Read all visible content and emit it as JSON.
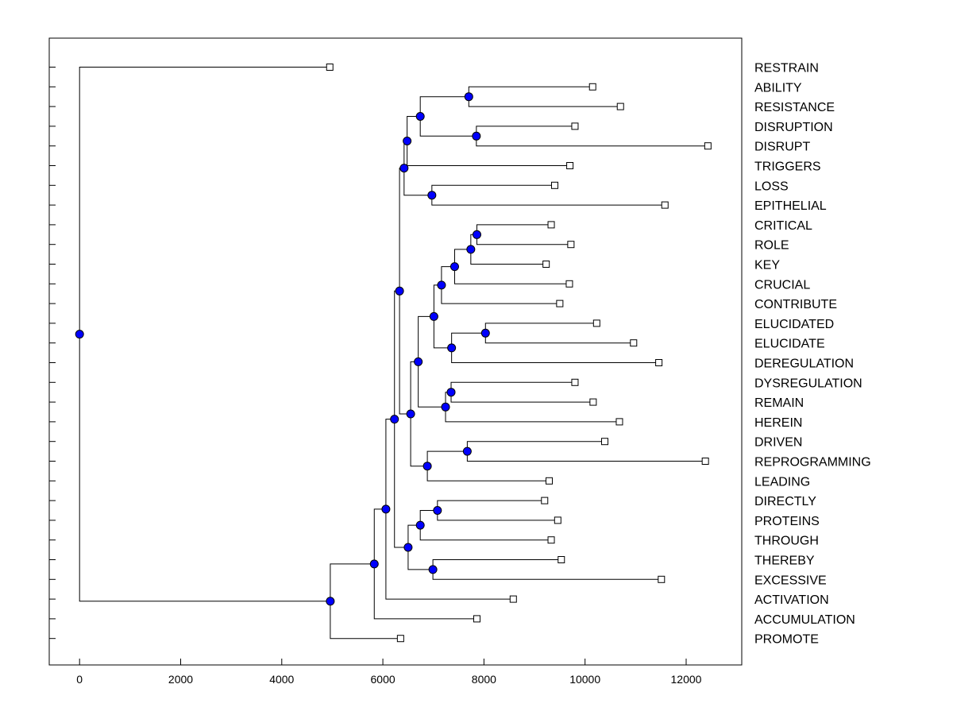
{
  "chart_data": {
    "type": "dendrogram",
    "title": "",
    "xlabel": "",
    "ylabel": "",
    "xlim": [
      -600,
      13100
    ],
    "x_ticks": [
      0,
      2000,
      4000,
      6000,
      8000,
      10000,
      12000
    ],
    "x_tick_labels": [
      "0",
      "2000",
      "4000",
      "6000",
      "8000",
      "10000",
      "12000"
    ],
    "leaves": [
      {
        "name": "RESTRAIN",
        "value": 4950
      },
      {
        "name": "ABILITY",
        "value": 10150
      },
      {
        "name": "RESISTANCE",
        "value": 10700
      },
      {
        "name": "DISRUPTION",
        "value": 9800
      },
      {
        "name": "DISRUPT",
        "value": 12430
      },
      {
        "name": "TRIGGERS",
        "value": 9700
      },
      {
        "name": "LOSS",
        "value": 9400
      },
      {
        "name": "EPITHELIAL",
        "value": 11580
      },
      {
        "name": "CRITICAL",
        "value": 9330
      },
      {
        "name": "ROLE",
        "value": 9720
      },
      {
        "name": "KEY",
        "value": 9230
      },
      {
        "name": "CRUCIAL",
        "value": 9690
      },
      {
        "name": "CONTRIBUTE",
        "value": 9500
      },
      {
        "name": "ELUCIDATED",
        "value": 10230
      },
      {
        "name": "ELUCIDATE",
        "value": 10960
      },
      {
        "name": "DEREGULATION",
        "value": 11460
      },
      {
        "name": "DYSREGULATION",
        "value": 9800
      },
      {
        "name": "REMAIN",
        "value": 10160
      },
      {
        "name": "HEREIN",
        "value": 10680
      },
      {
        "name": "DRIVEN",
        "value": 10390
      },
      {
        "name": "REPROGRAMMING",
        "value": 12380
      },
      {
        "name": "LEADING",
        "value": 9290
      },
      {
        "name": "DIRECTLY",
        "value": 9200
      },
      {
        "name": "PROTEINS",
        "value": 9460
      },
      {
        "name": "THROUGH",
        "value": 9330
      },
      {
        "name": "THEREBY",
        "value": 9530
      },
      {
        "name": "EXCESSIVE",
        "value": 11510
      },
      {
        "name": "ACTIVATION",
        "value": 8580
      },
      {
        "name": "ACCUMULATION",
        "value": 7860
      },
      {
        "name": "PROMOTE",
        "value": 6350
      }
    ],
    "merges": [
      {
        "id": "n_ab_res",
        "value": 7700,
        "children": [
          "ABILITY",
          "RESISTANCE"
        ]
      },
      {
        "id": "n_dis",
        "value": 7850,
        "children": [
          "DISRUPTION",
          "DISRUPT"
        ]
      },
      {
        "id": "n_top4",
        "value": 6740,
        "children": [
          "n_ab_res",
          "n_dis"
        ]
      },
      {
        "id": "n_top5",
        "value": 6480,
        "children": [
          "n_top4",
          "TRIGGERS"
        ]
      },
      {
        "id": "n_loss_epi",
        "value": 6970,
        "children": [
          "LOSS",
          "EPITHELIAL"
        ]
      },
      {
        "id": "n_top7",
        "value": 6420,
        "children": [
          "n_top5",
          "n_loss_epi"
        ]
      },
      {
        "id": "n_crit_role",
        "value": 7860,
        "children": [
          "CRITICAL",
          "ROLE"
        ]
      },
      {
        "id": "n_crk",
        "value": 7740,
        "children": [
          "n_crit_role",
          "KEY"
        ]
      },
      {
        "id": "n_crkc",
        "value": 7420,
        "children": [
          "n_crk",
          "CRUCIAL"
        ]
      },
      {
        "id": "n_crkcc",
        "value": 7160,
        "children": [
          "n_crkc",
          "CONTRIBUTE"
        ]
      },
      {
        "id": "n_eluc",
        "value": 8030,
        "children": [
          "ELUCIDATED",
          "ELUCIDATE"
        ]
      },
      {
        "id": "n_eluc_dereg",
        "value": 7360,
        "children": [
          "n_eluc",
          "DEREGULATION"
        ]
      },
      {
        "id": "n_role_grp",
        "value": 7010,
        "children": [
          "n_crkcc",
          "n_eluc_dereg"
        ]
      },
      {
        "id": "n_dys_rem",
        "value": 7350,
        "children": [
          "DYSREGULATION",
          "REMAIN"
        ]
      },
      {
        "id": "n_dys_grp",
        "value": 7240,
        "children": [
          "n_dys_rem",
          "HEREIN"
        ]
      },
      {
        "id": "n_mid",
        "value": 6700,
        "children": [
          "n_role_grp",
          "n_dys_grp"
        ]
      },
      {
        "id": "n_drv",
        "value": 7670,
        "children": [
          "DRIVEN",
          "REPROGRAMMING"
        ]
      },
      {
        "id": "n_drv_lead",
        "value": 6880,
        "children": [
          "n_drv",
          "LEADING"
        ]
      },
      {
        "id": "n_mid2",
        "value": 6550,
        "children": [
          "n_mid",
          "n_drv_lead"
        ]
      },
      {
        "id": "n_upper",
        "value": 6330,
        "children": [
          "n_top7",
          "n_mid2"
        ]
      },
      {
        "id": "n_dir_prot",
        "value": 7080,
        "children": [
          "DIRECTLY",
          "PROTEINS"
        ]
      },
      {
        "id": "n_dpt",
        "value": 6740,
        "children": [
          "n_dir_prot",
          "THROUGH"
        ]
      },
      {
        "id": "n_the_exc",
        "value": 6990,
        "children": [
          "THEREBY",
          "EXCESSIVE"
        ]
      },
      {
        "id": "n_low",
        "value": 6500,
        "children": [
          "n_dpt",
          "n_the_exc"
        ]
      },
      {
        "id": "n_big",
        "value": 6230,
        "children": [
          "n_upper",
          "n_low"
        ]
      },
      {
        "id": "n_act",
        "value": 6060,
        "children": [
          "n_big",
          "ACTIVATION"
        ]
      },
      {
        "id": "n_acc",
        "value": 5830,
        "children": [
          "n_act",
          "ACCUMULATION"
        ]
      },
      {
        "id": "n_prom",
        "value": 4960,
        "children": [
          "n_acc",
          "PROMOTE"
        ]
      },
      {
        "id": "n_root",
        "value": 0,
        "children": [
          "RESTRAIN",
          "n_prom"
        ]
      }
    ]
  },
  "colors": {
    "node_fill": "#0000ff",
    "line": "#000000",
    "leaf_fill": "#ffffff"
  }
}
